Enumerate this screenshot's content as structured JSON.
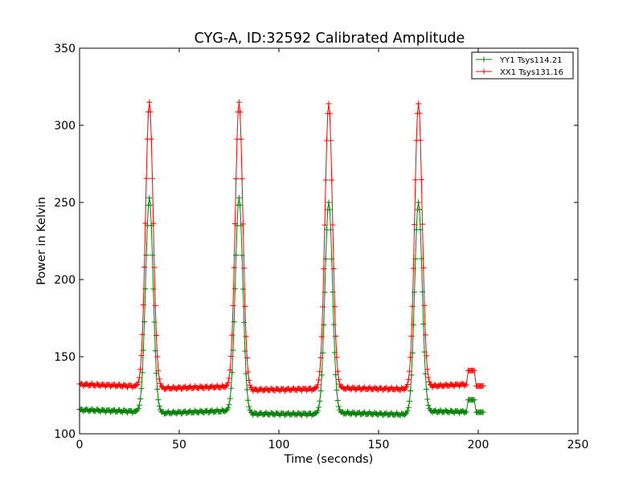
{
  "chart_data": {
    "type": "line",
    "title": "CYG-A, ID:32592 Calibrated Amplitude",
    "xlabel": "Time (seconds)",
    "ylabel": "Power in Kelvin",
    "xlim": [
      0,
      250
    ],
    "ylim": [
      100,
      350
    ],
    "x_ticks": [
      "0",
      "50",
      "100",
      "150",
      "200",
      "250"
    ],
    "y_ticks": [
      "100",
      "150",
      "200",
      "250",
      "300",
      "350"
    ],
    "grid": false,
    "legend_position": "top-right",
    "marker": "plus",
    "series": [
      {
        "name": "YY1 Tsys114.21",
        "color": "#008000",
        "baselines": [
          {
            "x0": 0,
            "x1": 27,
            "y0": 115.5,
            "y1": 114.5
          },
          {
            "x0": 42,
            "x1": 73,
            "y0": 113.5,
            "y1": 114.8
          },
          {
            "x0": 87,
            "x1": 118,
            "y0": 113.0,
            "y1": 112.8
          },
          {
            "x0": 132,
            "x1": 163,
            "y0": 113.5,
            "y1": 112.5
          },
          {
            "x0": 177,
            "x1": 194,
            "y0": 114.5,
            "y1": 114.3
          }
        ],
        "peaks": [
          {
            "center": 35,
            "peak": 253
          },
          {
            "center": 80,
            "peak": 253
          },
          {
            "center": 125,
            "peak": 250
          },
          {
            "center": 170,
            "peak": 250
          }
        ],
        "tail": [
          {
            "x0": 195,
            "x1": 198,
            "y": 122
          },
          {
            "x0": 199,
            "x1": 202.5,
            "y": 114
          }
        ]
      },
      {
        "name": "XX1 Tsys131.16",
        "color": "#ff0000",
        "baselines": [
          {
            "x0": 0,
            "x1": 27,
            "y0": 132.0,
            "y1": 131.0
          },
          {
            "x0": 42,
            "x1": 73,
            "y0": 129.5,
            "y1": 130.5
          },
          {
            "x0": 87,
            "x1": 118,
            "y0": 128.5,
            "y1": 129.0
          },
          {
            "x0": 132,
            "x1": 163,
            "y0": 129.5,
            "y1": 129.0
          },
          {
            "x0": 177,
            "x1": 194,
            "y0": 131.0,
            "y1": 132.0
          }
        ],
        "peaks": [
          {
            "center": 35,
            "peak": 315
          },
          {
            "center": 80,
            "peak": 315
          },
          {
            "center": 125,
            "peak": 314
          },
          {
            "center": 170,
            "peak": 314
          }
        ],
        "tail": [
          {
            "x0": 195,
            "x1": 198,
            "y": 141
          },
          {
            "x0": 199,
            "x1": 202.5,
            "y": 131
          }
        ]
      }
    ]
  }
}
